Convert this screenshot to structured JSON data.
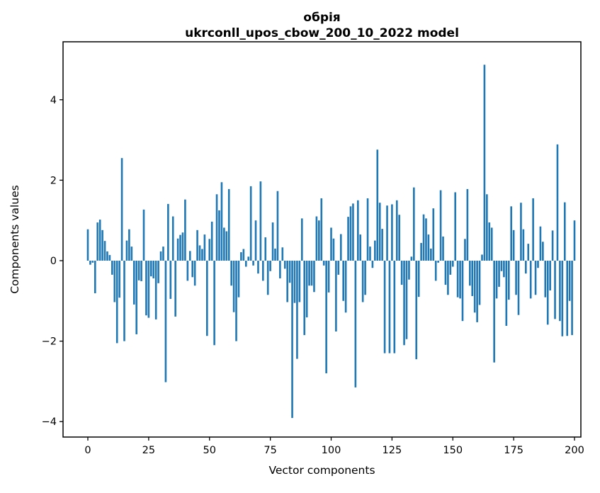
{
  "chart_data": {
    "type": "bar",
    "title_line1": "обрія",
    "title_line2": "ukrconll_upos_cbow_200_10_2022 model",
    "xlabel": "Vector components",
    "ylabel": "Components values",
    "bar_color": "#1f77b4",
    "axis_color": "#000000",
    "background_color": "#ffffff",
    "x_tick_labels": [
      0,
      25,
      50,
      75,
      100,
      125,
      150,
      175,
      200
    ],
    "y_tick_labels": [
      -4,
      -2,
      0,
      2,
      4
    ],
    "ylim": [
      -4.38,
      5.44
    ],
    "xlim": [
      -10.2,
      202.6
    ],
    "grid": false,
    "legend": "none",
    "values": [
      0.78,
      -0.1,
      -0.05,
      -0.81,
      0.95,
      1.02,
      0.76,
      0.49,
      0.23,
      0.14,
      -0.35,
      -1.03,
      -2.05,
      -0.92,
      2.55,
      -2.0,
      0.5,
      0.78,
      0.35,
      -1.09,
      -1.83,
      -0.49,
      -0.51,
      1.27,
      -1.36,
      -1.42,
      -0.39,
      -0.44,
      -1.46,
      -0.56,
      0.23,
      0.35,
      -3.02,
      1.41,
      -0.95,
      1.1,
      -1.39,
      0.55,
      0.64,
      0.7,
      1.52,
      -0.5,
      0.24,
      -0.41,
      -0.62,
      0.76,
      0.38,
      0.29,
      0.65,
      -1.87,
      0.54,
      0.97,
      -2.1,
      1.65,
      1.25,
      1.95,
      0.82,
      0.73,
      1.78,
      -0.62,
      -1.28,
      -2.0,
      -0.91,
      0.21,
      0.29,
      -0.15,
      0.1,
      1.85,
      -0.12,
      1.0,
      -0.32,
      1.97,
      -0.5,
      0.58,
      -0.85,
      -0.26,
      0.95,
      0.3,
      1.73,
      -0.44,
      0.33,
      -0.2,
      -1.03,
      -0.55,
      -3.91,
      -1.05,
      -2.44,
      -1.03,
      1.05,
      -1.85,
      -1.41,
      -0.62,
      -0.62,
      -0.78,
      1.1,
      1.0,
      1.55,
      -0.12,
      -2.8,
      -0.79,
      0.82,
      0.55,
      -1.76,
      -0.35,
      0.66,
      -1.0,
      -1.29,
      1.09,
      1.35,
      1.42,
      -3.15,
      1.5,
      0.65,
      -1.03,
      -0.85,
      1.55,
      0.35,
      -0.18,
      0.5,
      2.76,
      1.44,
      0.79,
      -2.3,
      1.37,
      -2.3,
      1.4,
      -2.3,
      1.5,
      1.14,
      -0.6,
      -2.1,
      -1.95,
      -0.47,
      0.1,
      1.82,
      -2.45,
      -0.9,
      0.44,
      1.15,
      1.05,
      0.65,
      0.3,
      1.3,
      -0.5,
      -0.05,
      1.75,
      0.6,
      -0.6,
      -0.85,
      -0.35,
      -0.15,
      1.7,
      -0.91,
      -0.94,
      -1.5,
      0.54,
      1.78,
      -0.62,
      -0.88,
      -1.29,
      -1.53,
      -1.1,
      0.15,
      4.87,
      1.65,
      0.95,
      0.82,
      -2.53,
      -0.94,
      -0.65,
      -0.26,
      -0.41,
      -1.62,
      -0.97,
      1.35,
      0.76,
      -0.85,
      -1.35,
      1.44,
      0.78,
      -0.32,
      0.42,
      -0.94,
      1.55,
      -0.85,
      -0.18,
      0.85,
      0.47,
      -0.91,
      -1.59,
      -0.74,
      0.75,
      -1.45,
      2.89,
      -1.5,
      -1.88,
      1.45,
      -1.87,
      -1.0,
      -1.85,
      1.0
    ]
  }
}
